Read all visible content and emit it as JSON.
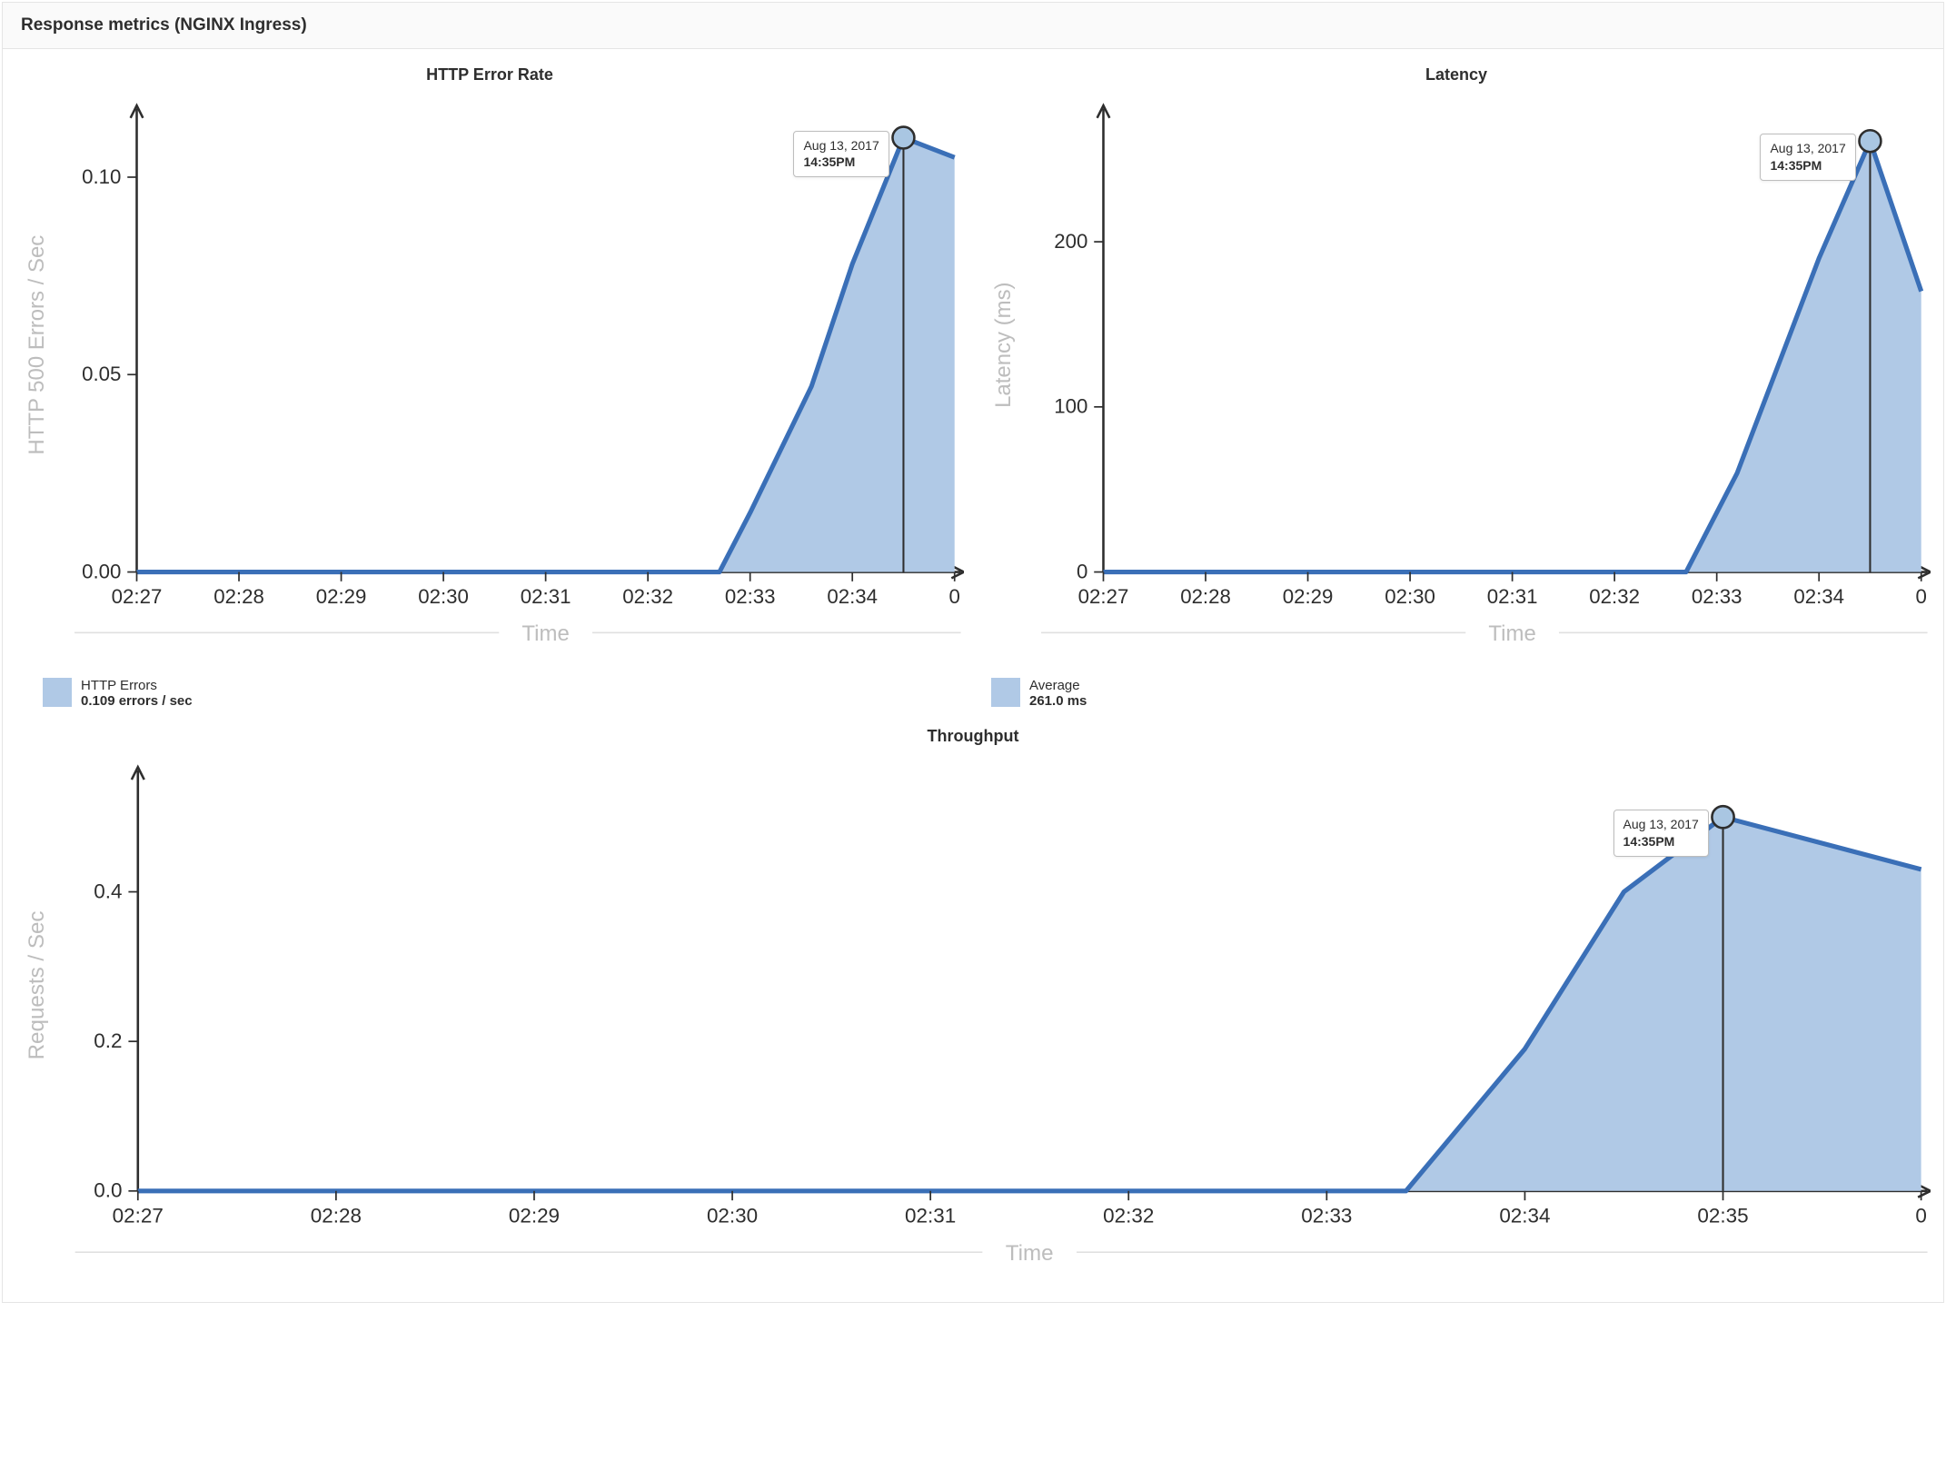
{
  "panel": {
    "title": "Response metrics (NGINX Ingress)"
  },
  "colors": {
    "series_fill": "#b0c9e6",
    "series_stroke": "#3a6fb7",
    "marker_fill": "#a9c6e2",
    "marker_stroke": "#2e2e2e",
    "axis": "#2e2e2e",
    "axis_label": "#bdbdbd",
    "tick_label": "#2e2e2e",
    "rule_thin": "#e0e0e0",
    "tooltip_border": "#bdbdbd",
    "bg": "#ffffff"
  },
  "tooltip": {
    "date": "Aug 13, 2017",
    "time": "14:35PM"
  },
  "charts": {
    "error_rate": {
      "title": "HTTP Error Rate",
      "type": "area",
      "ylabel": "HTTP 500 Errors / Sec",
      "xlabel": "Time",
      "xticks": [
        "02:27",
        "02:28",
        "02:29",
        "02:30",
        "02:31",
        "02:32",
        "02:33",
        "02:34",
        "0"
      ],
      "yticks": [
        0.0,
        0.05,
        0.1
      ],
      "ytick_labels": [
        "0.00",
        "0.05",
        "0.10"
      ],
      "ylim": [
        0,
        0.115
      ],
      "xlim": [
        0,
        8
      ],
      "points": [
        [
          0,
          0.0
        ],
        [
          1,
          0.0
        ],
        [
          2,
          0.0
        ],
        [
          3,
          0.0
        ],
        [
          4,
          0.0
        ],
        [
          5,
          0.0
        ],
        [
          5.7,
          0.0
        ],
        [
          6,
          0.015
        ],
        [
          6.6,
          0.047
        ],
        [
          7,
          0.078
        ],
        [
          7.5,
          0.11
        ],
        [
          8,
          0.105
        ]
      ],
      "marker_x": 7.5,
      "marker_y": 0.11,
      "legend": {
        "label": "HTTP Errors",
        "value": "0.109 errors / sec"
      }
    },
    "latency": {
      "title": "Latency",
      "type": "area",
      "ylabel": "Latency (ms)",
      "xlabel": "Time",
      "xticks": [
        "02:27",
        "02:28",
        "02:29",
        "02:30",
        "02:31",
        "02:32",
        "02:33",
        "02:34",
        "0"
      ],
      "yticks": [
        0,
        100,
        200
      ],
      "ytick_labels": [
        "0",
        "100",
        "200"
      ],
      "ylim": [
        0,
        275
      ],
      "xlim": [
        0,
        8
      ],
      "points": [
        [
          0,
          0
        ],
        [
          1,
          0
        ],
        [
          2,
          0
        ],
        [
          3,
          0
        ],
        [
          4,
          0
        ],
        [
          5,
          0
        ],
        [
          5.7,
          0
        ],
        [
          6.2,
          60
        ],
        [
          7,
          190
        ],
        [
          7.5,
          261
        ],
        [
          8,
          170
        ]
      ],
      "marker_x": 7.5,
      "marker_y": 261,
      "legend": {
        "label": "Average",
        "value": "261.0 ms"
      }
    },
    "throughput": {
      "title": "Throughput",
      "type": "area",
      "ylabel": "Requests / Sec",
      "xlabel": "Time",
      "xticks": [
        "02:27",
        "02:28",
        "02:29",
        "02:30",
        "02:31",
        "02:32",
        "02:33",
        "02:34",
        "02:35",
        "0"
      ],
      "yticks": [
        0.0,
        0.2,
        0.4
      ],
      "ytick_labels": [
        "0.0",
        "0.2",
        "0.4"
      ],
      "ylim": [
        0,
        0.55
      ],
      "xlim": [
        0,
        9
      ],
      "points": [
        [
          0,
          0.0
        ],
        [
          1,
          0.0
        ],
        [
          2,
          0.0
        ],
        [
          3,
          0.0
        ],
        [
          4,
          0.0
        ],
        [
          5,
          0.0
        ],
        [
          6,
          0.0
        ],
        [
          6.4,
          0.0
        ],
        [
          7,
          0.19
        ],
        [
          7.5,
          0.4
        ],
        [
          8,
          0.5
        ],
        [
          9,
          0.43
        ]
      ],
      "marker_x": 8,
      "marker_y": 0.5,
      "legend": null
    }
  },
  "styling": {
    "line_width": 3,
    "marker_radius": 7,
    "tick_len": 6,
    "title_fontsize": 18,
    "tick_fontsize": 13,
    "axis_label_fontsize": 14
  }
}
